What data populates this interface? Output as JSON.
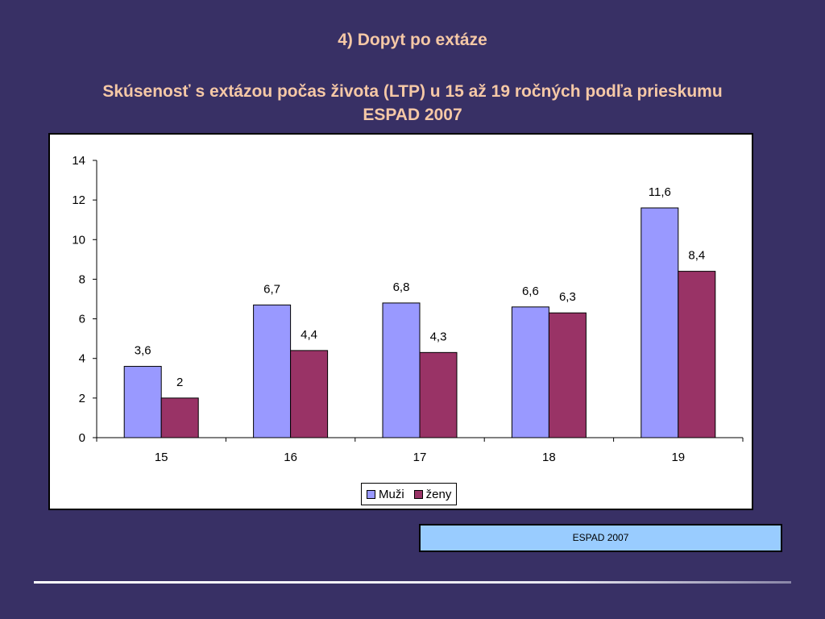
{
  "slide": {
    "title": "4) Dopyt po extáze",
    "subtitle": "Skúsenosť s extázou počas života (LTP) u 15 až 19 ročných podľa prieskumu ESPAD 2007",
    "source_label": "ESPAD 2007"
  },
  "colors": {
    "background": "#383065",
    "title": "#f5c8a6",
    "muzi": "#9999ff",
    "zeny": "#993366",
    "source_box": "#99ccff"
  },
  "chart_data": {
    "type": "bar",
    "categories": [
      "15",
      "16",
      "17",
      "18",
      "19"
    ],
    "series": [
      {
        "name": "Muži",
        "values": [
          3.6,
          6.7,
          6.8,
          6.6,
          11.6
        ],
        "labels": [
          "3,6",
          "6,7",
          "6,8",
          "6,6",
          "11,6"
        ],
        "color": "#9999ff"
      },
      {
        "name": "ženy",
        "values": [
          2,
          4.4,
          4.3,
          6.3,
          8.4
        ],
        "labels": [
          "2",
          "4,4",
          "4,3",
          "6,3",
          "8,4"
        ],
        "color": "#993366"
      }
    ],
    "ylim": [
      0,
      14
    ],
    "yticks": [
      "0",
      "2",
      "4",
      "6",
      "8",
      "10",
      "12",
      "14"
    ],
    "legend_position": "bottom",
    "grid": false
  }
}
